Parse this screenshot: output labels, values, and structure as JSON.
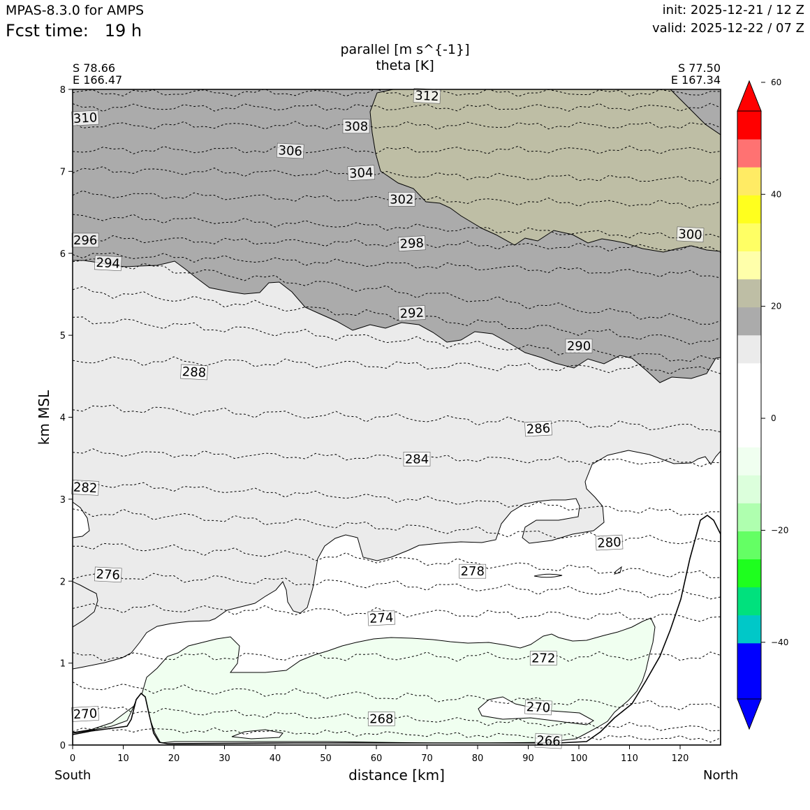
{
  "header": {
    "model": "MPAS-8.3.0 for AMPS",
    "fcst_label": "Fcst time:",
    "fcst_value": "19 h",
    "init": "init: 2025-12-21 / 12 Z",
    "valid": "valid: 2025-12-22 / 07 Z"
  },
  "endpoints": {
    "left_lat": "S 78.66",
    "left_lon": "E 166.47",
    "right_lat": "S 77.50",
    "right_lon": "E 167.34",
    "left_label": "South",
    "right_label": "North"
  },
  "chart_data": {
    "type": "cross-section (filled contour + line contour)",
    "title": "parallel [m s^{-1}]",
    "subtitle": "theta [K]",
    "xlabel": "distance [km]",
    "ylabel": "km MSL",
    "xlim": [
      0,
      128
    ],
    "ylim": [
      0,
      8
    ],
    "x_ticks": [
      "0",
      "10",
      "20",
      "30",
      "40",
      "50",
      "60",
      "70",
      "80",
      "90",
      "100",
      "110",
      "120"
    ],
    "y_ticks": [
      "0",
      "1",
      "2",
      "3",
      "4",
      "5",
      "6",
      "7",
      "8"
    ],
    "colorbar": {
      "range": [
        -55,
        60
      ],
      "tick_labels": [
        "60",
        "40",
        "20",
        "0",
        "−20",
        "−40"
      ],
      "ticks": [
        60,
        40,
        20,
        0,
        -20,
        -40
      ],
      "bins": [
        {
          "from": -50,
          "to": -45,
          "color": "#0000FF"
        },
        {
          "from": -45,
          "to": -40,
          "color": "#0000FF"
        },
        {
          "from": -40,
          "to": -35,
          "color": "#00C8C8"
        },
        {
          "from": -35,
          "to": -30,
          "color": "#00E17D"
        },
        {
          "from": -30,
          "to": -25,
          "color": "#1EFF1E"
        },
        {
          "from": -25,
          "to": -20,
          "color": "#64FF64"
        },
        {
          "from": -20,
          "to": -15,
          "color": "#AFFFAF"
        },
        {
          "from": -15,
          "to": -10,
          "color": "#DCFFDC"
        },
        {
          "from": -10,
          "to": -5,
          "color": "#F0FFF0"
        },
        {
          "from": -5,
          "to": 0,
          "color": "#FFFFFF"
        },
        {
          "from": 0,
          "to": 5,
          "color": "#FFFFFF"
        },
        {
          "from": 5,
          "to": 10,
          "color": "#FFFFFF"
        },
        {
          "from": 10,
          "to": 15,
          "color": "#EBEBEB"
        },
        {
          "from": 15,
          "to": 20,
          "color": "#ABABAB"
        },
        {
          "from": 20,
          "to": 25,
          "color": "#BEBEA5"
        },
        {
          "from": 25,
          "to": 30,
          "color": "#FFFFAA"
        },
        {
          "from": 30,
          "to": 35,
          "color": "#FFFF64"
        },
        {
          "from": 35,
          "to": 40,
          "color": "#FFFF1E"
        },
        {
          "from": 40,
          "to": 45,
          "color": "#FFEB64"
        },
        {
          "from": 45,
          "to": 50,
          "color": "#FF7272"
        },
        {
          "from": 50,
          "to": 55,
          "color": "#FF0000"
        }
      ],
      "extend_colors": {
        "min": "#0000FF",
        "max": "#FF0000"
      }
    },
    "theta_contour_labels": [
      {
        "value": "312",
        "x": 70,
        "y": 7.92
      },
      {
        "value": "310",
        "x": 2.5,
        "y": 7.65
      },
      {
        "value": "308",
        "x": 56,
        "y": 7.55
      },
      {
        "value": "306",
        "x": 43,
        "y": 7.25
      },
      {
        "value": "304",
        "x": 57,
        "y": 6.98
      },
      {
        "value": "302",
        "x": 65,
        "y": 6.66
      },
      {
        "value": "300",
        "x": 122,
        "y": 6.23
      },
      {
        "value": "298",
        "x": 67,
        "y": 6.12
      },
      {
        "value": "296",
        "x": 2.5,
        "y": 6.16
      },
      {
        "value": "294",
        "x": 7,
        "y": 5.88
      },
      {
        "value": "292",
        "x": 67,
        "y": 5.27
      },
      {
        "value": "290",
        "x": 100,
        "y": 4.87
      },
      {
        "value": "288",
        "x": 24,
        "y": 4.55
      },
      {
        "value": "286",
        "x": 92,
        "y": 3.86
      },
      {
        "value": "284",
        "x": 68,
        "y": 3.49
      },
      {
        "value": "282",
        "x": 2.5,
        "y": 3.14
      },
      {
        "value": "280",
        "x": 106,
        "y": 2.47
      },
      {
        "value": "278",
        "x": 79,
        "y": 2.12
      },
      {
        "value": "276",
        "x": 7,
        "y": 2.08
      },
      {
        "value": "274",
        "x": 61,
        "y": 1.55
      },
      {
        "value": "272",
        "x": 93,
        "y": 1.06
      },
      {
        "value": "270",
        "x": 92,
        "y": 0.46
      },
      {
        "value": "270",
        "x": 2.5,
        "y": 0.38
      },
      {
        "value": "268",
        "x": 61,
        "y": 0.32
      },
      {
        "value": "266",
        "x": 94,
        "y": 0.05
      }
    ],
    "grid": false,
    "legend": "colorbar-right"
  }
}
